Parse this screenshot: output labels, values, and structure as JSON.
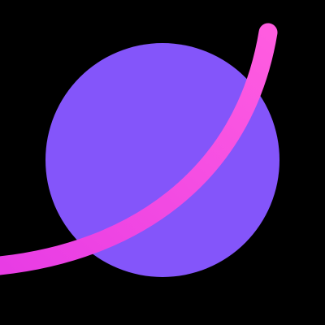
{
  "illustration": {
    "subject": "planet-with-ring-icon",
    "colors": {
      "background": "#000000",
      "planet": "#8455FA",
      "planet_shadow": "#6A3FE8",
      "ring_start": "#E83CE4",
      "ring_end": "#FF5CE0"
    }
  }
}
